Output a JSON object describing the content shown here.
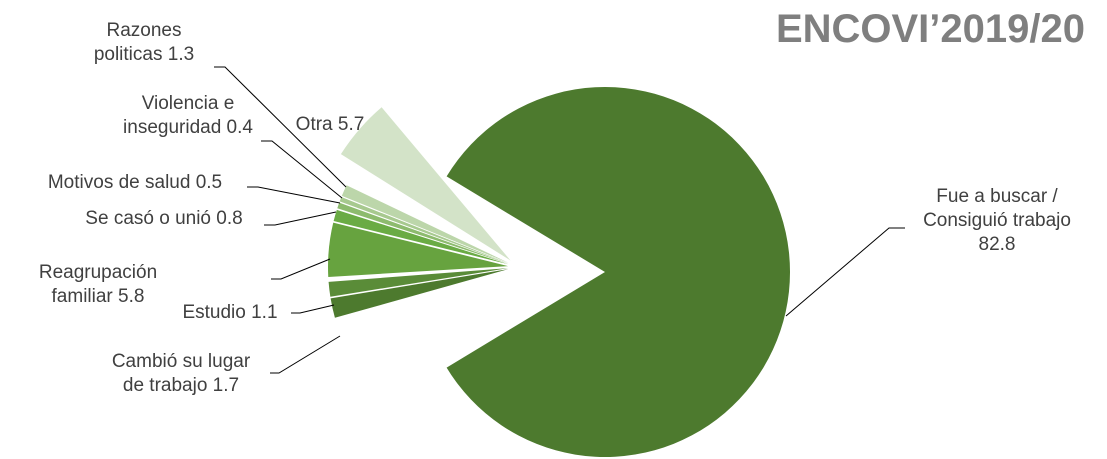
{
  "chart_data": {
    "type": "pie",
    "title": "ENCOVI’2019/20",
    "exploded": true,
    "slices": [
      {
        "key": "trabajo",
        "label_lines": [
          "Fue a buscar /",
          "Consiguió trabajo",
          "82.8"
        ],
        "value": 82.8,
        "color": "#4d7a2e"
      },
      {
        "key": "lugar",
        "label_lines": [
          "Cambió su lugar",
          "de trabajo 1.7"
        ],
        "value": 1.7,
        "color": "#4d7a2e"
      },
      {
        "key": "estudio",
        "label_lines": [
          "Estudio 1.1"
        ],
        "value": 1.1,
        "color": "#5a8c38"
      },
      {
        "key": "reagrupacion",
        "label_lines": [
          "Reagrupación",
          "familiar 5.8"
        ],
        "value": 5.8,
        "color": "#67a33f"
      },
      {
        "key": "casado",
        "label_lines": [
          "Se casó o unió 0.8"
        ],
        "value": 0.8,
        "color": "#6aab44"
      },
      {
        "key": "salud",
        "label_lines": [
          "Motivos de salud 0.5"
        ],
        "value": 0.5,
        "color": "#8dbb6e"
      },
      {
        "key": "violencia",
        "label_lines": [
          "Violencia e",
          "inseguridad 0.4"
        ],
        "value": 0.4,
        "color": "#a7c98f"
      },
      {
        "key": "politicas",
        "label_lines": [
          "Razones",
          "politicas 1.3"
        ],
        "value": 1.3,
        "color": "#bcd6aa"
      },
      {
        "key": "otra",
        "label_lines": [
          "Otra 5.7"
        ],
        "value": 5.7,
        "color": "#d3e3c8"
      }
    ]
  }
}
